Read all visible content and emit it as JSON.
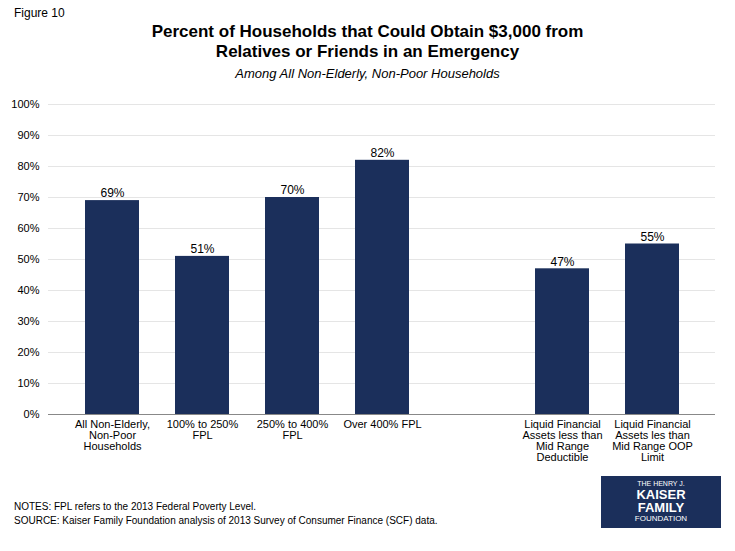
{
  "chart_data": {
    "type": "bar",
    "figure_label": "Figure 10",
    "title": "Percent of Households that Could Obtain $3,000 from\nRelatives or Friends in an Emergency",
    "subtitle": "Among All Non-Elderly, Non-Poor Households",
    "categories": [
      "All Non-Elderly,\nNon-Poor\nHouseholds",
      "100% to 250%\nFPL",
      "250% to 400%\nFPL",
      "Over 400% FPL",
      null,
      "Liquid Financial\nAssets less than\nMid Range\nDeductible",
      "Liquid Financial\nAssets les than\nMid Range OOP\nLimit"
    ],
    "values": [
      69,
      51,
      70,
      82,
      null,
      47,
      55
    ],
    "value_labels": [
      "69%",
      "51%",
      "70%",
      "82%",
      null,
      "47%",
      "55%"
    ],
    "data_labels": true,
    "color": "#1b2f5b",
    "ylim": [
      0,
      100
    ],
    "yticks": [
      {
        "value": 0,
        "label": "0%"
      },
      {
        "value": 10,
        "label": "10%"
      },
      {
        "value": 20,
        "label": "20%"
      },
      {
        "value": 30,
        "label": "30%"
      },
      {
        "value": 40,
        "label": "40%"
      },
      {
        "value": 50,
        "label": "50%"
      },
      {
        "value": 60,
        "label": "60%"
      },
      {
        "value": 70,
        "label": "70%"
      },
      {
        "value": 80,
        "label": "80%"
      },
      {
        "value": 90,
        "label": "90%"
      },
      {
        "value": 100,
        "label": "100%"
      }
    ],
    "grid": true,
    "notes": [
      "NOTES: FPL refers to the 2013 Federal Poverty Level.",
      "SOURCE: Kaiser Family Foundation analysis of 2013 Survey of Consumer Finance (SCF) data."
    ],
    "logo_text": [
      "THE HENRY J.",
      "KAISER",
      "FAMILY",
      "FOUNDATION"
    ]
  }
}
